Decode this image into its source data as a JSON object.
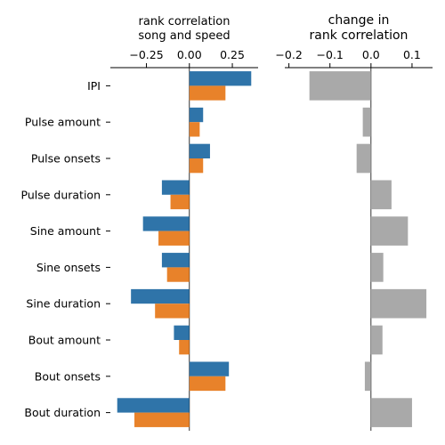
{
  "chart_data": [
    {
      "type": "bar",
      "orientation": "horizontal",
      "title": "rank correlation\nsong and speed",
      "categories": [
        "IPI",
        "Pulse amount",
        "Pulse onsets",
        "Pulse duration",
        "Sine amount",
        "Sine onsets",
        "Sine duration",
        "Bout amount",
        "Bout onsets",
        "Bout duration"
      ],
      "series": [
        {
          "color": "#2f74a9",
          "values": [
            0.36,
            0.08,
            0.12,
            -0.16,
            -0.27,
            -0.16,
            -0.34,
            -0.09,
            0.23,
            -0.42
          ]
        },
        {
          "color": "#e8822a",
          "values": [
            0.21,
            0.06,
            0.08,
            -0.11,
            -0.18,
            -0.13,
            -0.2,
            -0.06,
            0.21,
            -0.32
          ]
        }
      ],
      "xlim": [
        -0.46,
        0.4
      ],
      "xticks": [
        -0.25,
        0.0,
        0.25
      ],
      "xtick_labels": [
        "−0.25",
        "0.00",
        "0.25"
      ],
      "xaxis_position": "top",
      "grid": false
    },
    {
      "type": "bar",
      "orientation": "horizontal",
      "title": "change in\nrank correlation",
      "categories": [
        "IPI",
        "Pulse amount",
        "Pulse onsets",
        "Pulse duration",
        "Sine amount",
        "Sine onsets",
        "Sine duration",
        "Bout amount",
        "Bout onsets",
        "Bout duration"
      ],
      "series": [
        {
          "color": "#a9a9a9",
          "values": [
            -0.15,
            -0.02,
            -0.035,
            0.05,
            0.09,
            0.03,
            0.135,
            0.028,
            -0.015,
            0.1
          ]
        }
      ],
      "xlim": [
        -0.21,
        0.15
      ],
      "xticks": [
        -0.2,
        -0.1,
        0.0,
        0.1
      ],
      "xtick_labels": [
        "−0.2",
        "−0.1",
        "0.0",
        "0.1"
      ],
      "xaxis_position": "top",
      "grid": false
    }
  ]
}
